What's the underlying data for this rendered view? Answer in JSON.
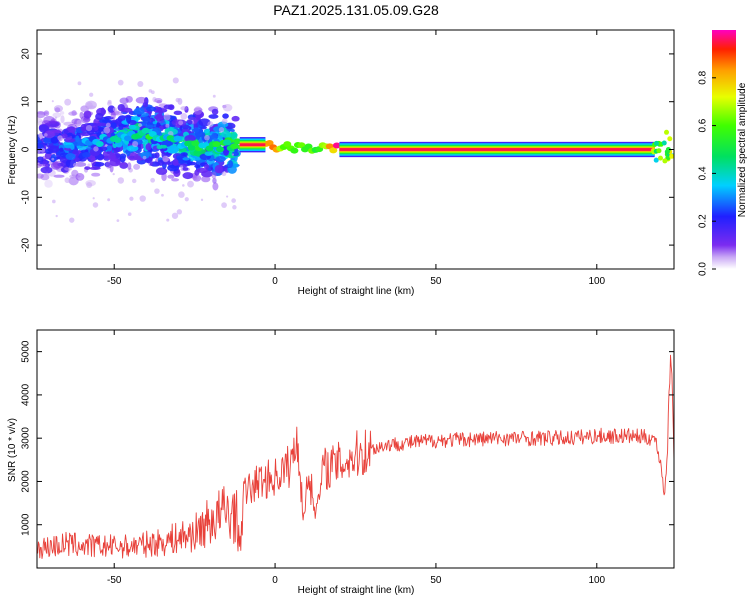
{
  "title": "PAZ1.2025.131.05.09.G28",
  "chart_data": [
    {
      "type": "heatmap",
      "xlabel": "Height of straight line (km)",
      "ylabel": "Frequency (Hz)",
      "xlim": [
        -74,
        124
      ],
      "ylim": [
        -25,
        25
      ],
      "x_ticks": [
        -50,
        0,
        50,
        100
      ],
      "y_ticks": [
        20,
        10,
        0,
        -10,
        -20
      ],
      "colorbar": {
        "label": "Normalized spectral amplitude",
        "range": [
          0,
          1
        ],
        "ticks": [
          0.0,
          0.2,
          0.4,
          0.6,
          0.8
        ]
      },
      "ridge": [
        {
          "x": -70,
          "y": 0.5,
          "amp": 0.25
        },
        {
          "x": -60,
          "y": 1.0,
          "amp": 0.3
        },
        {
          "x": -50,
          "y": 2.5,
          "amp": 0.35
        },
        {
          "x": -40,
          "y": 3.5,
          "amp": 0.45
        },
        {
          "x": -30,
          "y": 1.5,
          "amp": 0.4
        },
        {
          "x": -20,
          "y": 0.5,
          "amp": 0.45
        },
        {
          "x": -12,
          "y": 1.0,
          "amp": 0.5
        },
        {
          "x": -5,
          "y": 1.0,
          "amp": 1.0
        },
        {
          "x": 5,
          "y": 0.5,
          "amp": 0.55
        },
        {
          "x": 15,
          "y": 0.3,
          "amp": 0.6
        },
        {
          "x": 20,
          "y": 0.0,
          "amp": 1.0
        },
        {
          "x": 118,
          "y": 0.0,
          "amp": 1.0
        },
        {
          "x": 122,
          "y": 2.0,
          "amp": 0.5
        }
      ]
    },
    {
      "type": "line",
      "xlabel": "Height of straight line (km)",
      "ylabel": "SNR (10 * v/v)",
      "xlim": [
        -74,
        124
      ],
      "ylim": [
        0,
        5500
      ],
      "x_ticks": [
        -50,
        0,
        50,
        100
      ],
      "y_ticks": [
        1000,
        2000,
        3000,
        4000,
        5000
      ],
      "color": "#e8413a",
      "series": [
        {
          "x": [
            -74,
            -65,
            -55,
            -45,
            -35,
            -25,
            -20,
            -15,
            -12,
            -11,
            -10,
            -5,
            0,
            5,
            7,
            9,
            10,
            13,
            15,
            20,
            25,
            30,
            35,
            50,
            70,
            90,
            100,
            110,
            118,
            120,
            121,
            122,
            123,
            124
          ],
          "values": [
            450,
            550,
            500,
            500,
            600,
            800,
            1100,
            1300,
            1200,
            400,
            1700,
            2000,
            2100,
            2400,
            3000,
            1000,
            2200,
            1300,
            2300,
            2400,
            2600,
            2750,
            2850,
            2950,
            3000,
            3000,
            3050,
            3050,
            3000,
            2400,
            1600,
            2800,
            5200,
            2600
          ]
        }
      ]
    }
  ]
}
